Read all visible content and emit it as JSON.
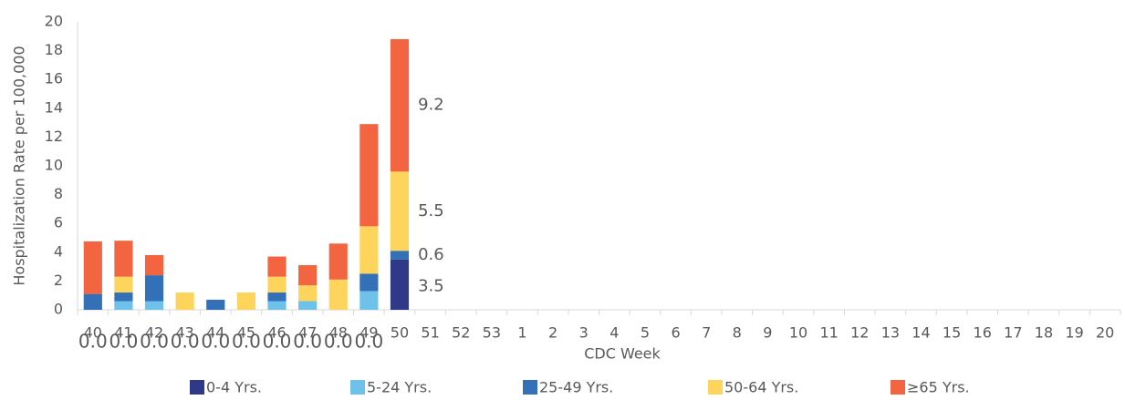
{
  "chart_data": {
    "type": "stacked_bar",
    "y_axis_label": "Hospitalization Rate per 100,000",
    "x_axis_label": "CDC Week",
    "categories": [
      "40",
      "41",
      "42",
      "43",
      "44",
      "45",
      "46",
      "47",
      "48",
      "49",
      "50",
      "51",
      "52",
      "53",
      "1",
      "2",
      "3",
      "4",
      "5",
      "6",
      "7",
      "8",
      "9",
      "10",
      "11",
      "12",
      "13",
      "14",
      "15",
      "16",
      "17",
      "18",
      "19",
      "20"
    ],
    "ylim": [
      0,
      20
    ],
    "yticks": [
      0,
      2,
      4,
      6,
      8,
      10,
      12,
      14,
      16,
      18,
      20
    ],
    "grid": false,
    "legend": "bottom",
    "series": [
      {
        "name": "0-4 Yrs.",
        "color": "#2e3a87",
        "values": [
          0,
          0,
          0,
          0,
          0,
          0,
          0,
          0,
          0,
          0,
          3.5,
          null,
          null,
          null,
          null,
          null,
          null,
          null,
          null,
          null,
          null,
          null,
          null,
          null,
          null,
          null,
          null,
          null,
          null,
          null,
          null,
          null,
          null,
          null
        ],
        "value_labels": [
          "0.0",
          "0.0",
          "0.0",
          "0.0",
          "0.0",
          "0.0",
          "0.0",
          "0.0",
          "0.0",
          "0.0",
          "3.5",
          null,
          null,
          null,
          null,
          null,
          null,
          null,
          null,
          null,
          null,
          null,
          null,
          null,
          null,
          null,
          null,
          null,
          null,
          null,
          null,
          null,
          null,
          null
        ]
      },
      {
        "name": "5-24 Yrs.",
        "color": "#6ec1ea",
        "values": [
          0,
          0.6,
          0.6,
          0,
          0,
          0,
          0.6,
          0.6,
          0,
          1.3,
          0,
          null,
          null,
          null,
          null,
          null,
          null,
          null,
          null,
          null,
          null,
          null,
          null,
          null,
          null,
          null,
          null,
          null,
          null,
          null,
          null,
          null,
          null,
          null
        ]
      },
      {
        "name": "25-49 Yrs.",
        "color": "#3470b8",
        "values": [
          1.1,
          0.6,
          1.8,
          0,
          0.7,
          0,
          0.6,
          0,
          0,
          1.2,
          0.6,
          null,
          null,
          null,
          null,
          null,
          null,
          null,
          null,
          null,
          null,
          null,
          null,
          null,
          null,
          null,
          null,
          null,
          null,
          null,
          null,
          null,
          null,
          null
        ],
        "value_labels": [
          null,
          null,
          null,
          null,
          null,
          null,
          null,
          null,
          null,
          null,
          "0.6",
          null,
          null,
          null,
          null,
          null,
          null,
          null,
          null,
          null,
          null,
          null,
          null,
          null,
          null,
          null,
          null,
          null,
          null,
          null,
          null,
          null,
          null,
          null
        ]
      },
      {
        "name": "50-64 Yrs.",
        "color": "#fdd55c",
        "values": [
          0,
          1.1,
          0,
          1.2,
          0,
          1.2,
          1.1,
          1.1,
          2.1,
          3.3,
          5.5,
          null,
          null,
          null,
          null,
          null,
          null,
          null,
          null,
          null,
          null,
          null,
          null,
          null,
          null,
          null,
          null,
          null,
          null,
          null,
          null,
          null,
          null,
          null
        ],
        "value_labels": [
          null,
          null,
          null,
          null,
          null,
          null,
          null,
          null,
          null,
          null,
          "5.5",
          null,
          null,
          null,
          null,
          null,
          null,
          null,
          null,
          null,
          null,
          null,
          null,
          null,
          null,
          null,
          null,
          null,
          null,
          null,
          null,
          null,
          null,
          null
        ]
      },
      {
        "name": "≥65 Yrs.",
        "color": "#f26540",
        "values": [
          3.65,
          2.5,
          1.4,
          0,
          0,
          0,
          1.4,
          1.4,
          2.5,
          7.1,
          9.2,
          null,
          null,
          null,
          null,
          null,
          null,
          null,
          null,
          null,
          null,
          null,
          null,
          null,
          null,
          null,
          null,
          null,
          null,
          null,
          null,
          null,
          null,
          null
        ],
        "value_labels": [
          null,
          null,
          null,
          null,
          null,
          null,
          null,
          null,
          null,
          null,
          "9.2",
          null,
          null,
          null,
          null,
          null,
          null,
          null,
          null,
          null,
          null,
          null,
          null,
          null,
          null,
          null,
          null,
          null,
          null,
          null,
          null,
          null,
          null,
          null
        ]
      }
    ]
  }
}
